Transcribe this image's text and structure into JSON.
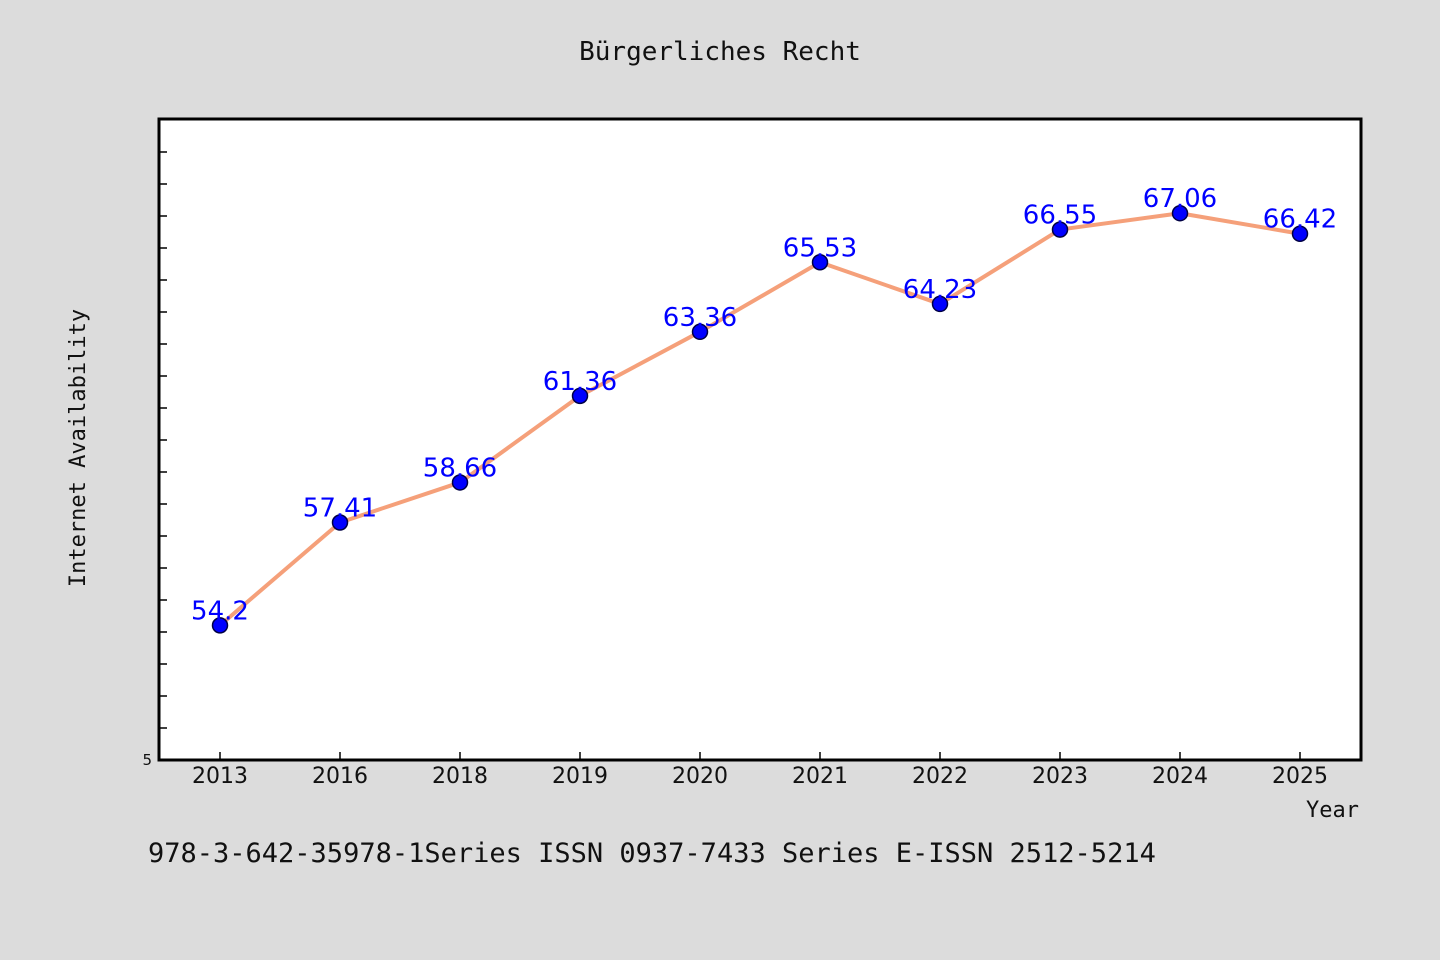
{
  "chart_data": {
    "type": "line",
    "title": "Bürgerliches Recht",
    "xlabel": "Year",
    "ylabel": "Internet Availability",
    "categories": [
      "2013",
      "2016",
      "2018",
      "2019",
      "2020",
      "2021",
      "2022",
      "2023",
      "2024",
      "2025"
    ],
    "series": [
      {
        "values": [
          54.2,
          57.41,
          58.66,
          61.36,
          63.36,
          65.53,
          64.23,
          66.55,
          67.06,
          66.42
        ],
        "data_labels": [
          "54.2",
          "57.41",
          "58.66",
          "61.36",
          "63.36",
          "65.53",
          "64.23",
          "66.55",
          "67.06",
          "66.42"
        ]
      }
    ],
    "ylim": [
      50,
      70
    ],
    "yticks": [
      5
    ],
    "grid": false,
    "legend": "none",
    "colors": {
      "line": "#f5a07a",
      "marker": "#0000ff",
      "data_label": "#0000ff",
      "plot_background": "#ffffff",
      "page_background": "#dcdcdc"
    }
  },
  "footer": {
    "text": "978-3-642-35978-1Series ISSN 0937-7433 Series E-ISSN 2512-5214"
  }
}
